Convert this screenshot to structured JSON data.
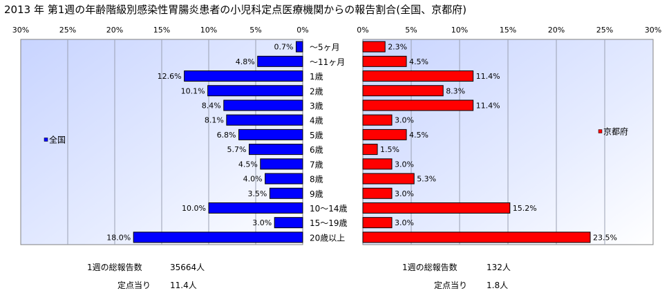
{
  "title": "2013 年 第1週の年齢階級別感染性胃腸炎患者の小児科定点医療機関からの報告割合(全国、京都府)",
  "chart_data": {
    "type": "bar",
    "orientation": "horizontal-butterfly",
    "categories": [
      "〜5ヶ月",
      "〜11ヶ月",
      "1歳",
      "2歳",
      "3歳",
      "4歳",
      "5歳",
      "6歳",
      "7歳",
      "8歳",
      "9歳",
      "10〜14歳",
      "15〜19歳",
      "20歳以上"
    ],
    "series": [
      {
        "name": "全国",
        "color": "#0000ff",
        "values": [
          0.7,
          4.8,
          12.6,
          10.1,
          8.4,
          8.1,
          6.8,
          5.7,
          4.5,
          4.0,
          3.5,
          10.0,
          3.0,
          18.0
        ],
        "labels": [
          "0.7%",
          "4.8%",
          "12.6%",
          "10.1%",
          "8.4%",
          "8.1%",
          "6.8%",
          "5.7%",
          "4.5%",
          "4.0%",
          "3.5%",
          "10.0%",
          "3.0%",
          "18.0%"
        ],
        "ticks": [
          "30%",
          "25%",
          "20%",
          "15%",
          "10%",
          "5%",
          "0%"
        ]
      },
      {
        "name": "京都府",
        "color": "#ff0000",
        "values": [
          2.3,
          4.5,
          11.4,
          8.3,
          11.4,
          3.0,
          4.5,
          1.5,
          3.0,
          5.3,
          3.0,
          15.2,
          3.0,
          23.5
        ],
        "labels": [
          "2.3%",
          "4.5%",
          "11.4%",
          "8.3%",
          "11.4%",
          "3.0%",
          "4.5%",
          "1.5%",
          "3.0%",
          "5.3%",
          "3.0%",
          "15.2%",
          "3.0%",
          "23.5%"
        ],
        "ticks": [
          "0%",
          "5%",
          "10%",
          "15%",
          "20%",
          "25%",
          "30%"
        ]
      }
    ],
    "xlim": [
      0,
      30
    ],
    "grid": true,
    "legend_placement": "inside each panel, vertically centered (left panel left side, right panel right side)"
  },
  "stats": {
    "national": {
      "total_label": "1週の総報告数",
      "total_value": "35664人",
      "per_label": "定点当り",
      "per_value": "11.4人"
    },
    "kyoto": {
      "total_label": "1週の総報告数",
      "total_value": "132人",
      "per_label": "定点当り",
      "per_value": "1.8人"
    }
  },
  "colors": {
    "plot_bg_top": "#ccd8ff",
    "plot_bg_bottom": "#ffffff",
    "grid": "#9aa0b0"
  }
}
